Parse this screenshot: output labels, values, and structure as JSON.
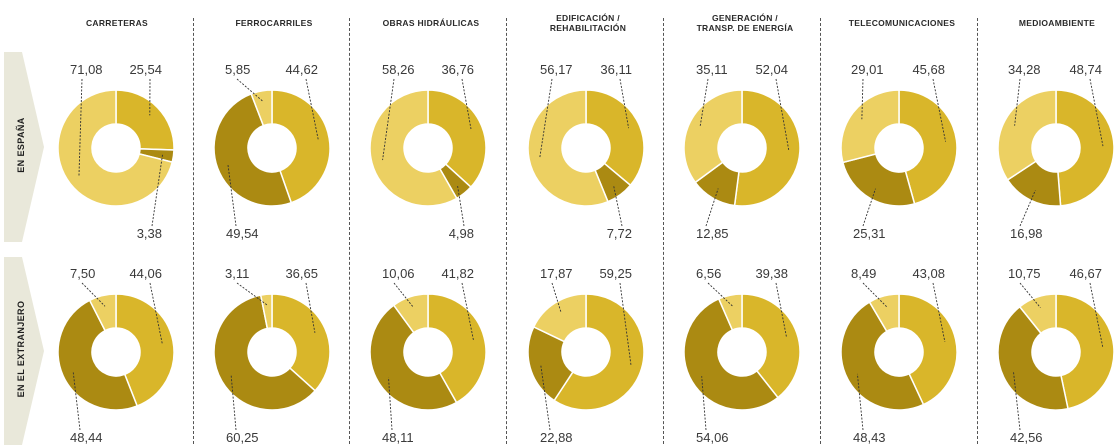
{
  "columns": [
    {
      "line1": "CARRETERAS",
      "line2": ""
    },
    {
      "line1": "FERROCARRILES",
      "line2": ""
    },
    {
      "line1": "OBRAS HIDRÁULICAS",
      "line2": ""
    },
    {
      "line1": "EDIFICACIÓN /",
      "line2": "REHABILITACIÓN"
    },
    {
      "line1": "GENERACIÓN /",
      "line2": "TRANSP. DE ENERGÍA"
    },
    {
      "line1": "TELECOMUNICACIONES",
      "line2": ""
    },
    {
      "line1": "MEDIOAMBIENTE",
      "line2": ""
    }
  ],
  "rows": [
    {
      "label": "EN ESPAÑA"
    },
    {
      "label": "EN EL EXTRANJERO"
    }
  ],
  "colors": {
    "light": "#ecd062",
    "mid": "#d9b62a",
    "dark": "#ab8a12",
    "tab": "#e9e8da",
    "leader": "#333333"
  },
  "chart_data": {
    "type": "pie",
    "variant": "donut",
    "rows": [
      {
        "row": "EN ESPAÑA",
        "charts": [
          {
            "column": "CARRETERAS",
            "slices": [
              {
                "value": 25.54,
                "label": "25,54",
                "shade": "mid",
                "pos": "top"
              },
              {
                "value": 3.38,
                "label": "3,38",
                "shade": "dark",
                "pos": "bottom"
              },
              {
                "value": 71.08,
                "label": "71,08",
                "shade": "light",
                "pos": "top"
              }
            ]
          },
          {
            "column": "FERROCARRILES",
            "slices": [
              {
                "value": 44.62,
                "label": "44,62",
                "shade": "mid",
                "pos": "top"
              },
              {
                "value": 49.54,
                "label": "49,54",
                "shade": "dark",
                "pos": "bottom"
              },
              {
                "value": 5.85,
                "label": "5,85",
                "shade": "light",
                "pos": "top"
              }
            ]
          },
          {
            "column": "OBRAS HIDRÁULICAS",
            "slices": [
              {
                "value": 36.76,
                "label": "36,76",
                "shade": "mid",
                "pos": "top"
              },
              {
                "value": 4.98,
                "label": "4,98",
                "shade": "dark",
                "pos": "bottom"
              },
              {
                "value": 58.26,
                "label": "58,26",
                "shade": "light",
                "pos": "top"
              }
            ]
          },
          {
            "column": "EDIFICACIÓN / REHABILITACIÓN",
            "slices": [
              {
                "value": 36.11,
                "label": "36,11",
                "shade": "mid",
                "pos": "top"
              },
              {
                "value": 7.72,
                "label": "7,72",
                "shade": "dark",
                "pos": "bottom"
              },
              {
                "value": 56.17,
                "label": "56,17",
                "shade": "light",
                "pos": "top"
              }
            ]
          },
          {
            "column": "GENERACIÓN / TRANSP. DE ENERGÍA",
            "slices": [
              {
                "value": 52.04,
                "label": "52,04",
                "shade": "mid",
                "pos": "top"
              },
              {
                "value": 12.85,
                "label": "12,85",
                "shade": "dark",
                "pos": "bottom"
              },
              {
                "value": 35.11,
                "label": "35,11",
                "shade": "light",
                "pos": "top"
              }
            ]
          },
          {
            "column": "TELECOMUNICACIONES",
            "slices": [
              {
                "value": 45.68,
                "label": "45,68",
                "shade": "mid",
                "pos": "top"
              },
              {
                "value": 25.31,
                "label": "25,31",
                "shade": "dark",
                "pos": "bottom"
              },
              {
                "value": 29.01,
                "label": "29,01",
                "shade": "light",
                "pos": "top"
              }
            ]
          },
          {
            "column": "MEDIOAMBIENTE",
            "slices": [
              {
                "value": 48.74,
                "label": "48,74",
                "shade": "mid",
                "pos": "top"
              },
              {
                "value": 16.98,
                "label": "16,98",
                "shade": "dark",
                "pos": "bottom"
              },
              {
                "value": 34.28,
                "label": "34,28",
                "shade": "light",
                "pos": "top"
              }
            ]
          }
        ]
      },
      {
        "row": "EN EL EXTRANJERO",
        "charts": [
          {
            "column": "CARRETERAS",
            "slices": [
              {
                "value": 44.06,
                "label": "44,06",
                "shade": "mid",
                "pos": "top"
              },
              {
                "value": 48.44,
                "label": "48,44",
                "shade": "dark",
                "pos": "bottom"
              },
              {
                "value": 7.5,
                "label": "7,50",
                "shade": "light",
                "pos": "top"
              }
            ]
          },
          {
            "column": "FERROCARRILES",
            "slices": [
              {
                "value": 36.65,
                "label": "36,65",
                "shade": "mid",
                "pos": "top"
              },
              {
                "value": 60.25,
                "label": "60,25",
                "shade": "dark",
                "pos": "bottom"
              },
              {
                "value": 3.11,
                "label": "3,11",
                "shade": "light",
                "pos": "top"
              }
            ]
          },
          {
            "column": "OBRAS HIDRÁULICAS",
            "slices": [
              {
                "value": 41.82,
                "label": "41,82",
                "shade": "mid",
                "pos": "top"
              },
              {
                "value": 48.11,
                "label": "48,11",
                "shade": "dark",
                "pos": "bottom"
              },
              {
                "value": 10.06,
                "label": "10,06",
                "shade": "light",
                "pos": "top"
              }
            ]
          },
          {
            "column": "EDIFICACIÓN / REHABILITACIÓN",
            "slices": [
              {
                "value": 59.25,
                "label": "59,25",
                "shade": "mid",
                "pos": "top"
              },
              {
                "value": 22.88,
                "label": "22,88",
                "shade": "dark",
                "pos": "bottom"
              },
              {
                "value": 17.87,
                "label": "17,87",
                "shade": "light",
                "pos": "top"
              }
            ]
          },
          {
            "column": "GENERACIÓN / TRANSP. DE ENERGÍA",
            "slices": [
              {
                "value": 39.38,
                "label": "39,38",
                "shade": "mid",
                "pos": "top"
              },
              {
                "value": 54.06,
                "label": "54,06",
                "shade": "dark",
                "pos": "bottom"
              },
              {
                "value": 6.56,
                "label": "6,56",
                "shade": "light",
                "pos": "top"
              }
            ]
          },
          {
            "column": "TELECOMUNICACIONES",
            "slices": [
              {
                "value": 43.08,
                "label": "43,08",
                "shade": "mid",
                "pos": "top"
              },
              {
                "value": 48.43,
                "label": "48,43",
                "shade": "dark",
                "pos": "bottom"
              },
              {
                "value": 8.49,
                "label": "8,49",
                "shade": "light",
                "pos": "top"
              }
            ]
          },
          {
            "column": "MEDIOAMBIENTE",
            "slices": [
              {
                "value": 46.67,
                "label": "46,67",
                "shade": "mid",
                "pos": "top"
              },
              {
                "value": 42.56,
                "label": "42,56",
                "shade": "dark",
                "pos": "bottom"
              },
              {
                "value": 10.75,
                "label": "10,75",
                "shade": "light",
                "pos": "top"
              }
            ]
          }
        ]
      }
    ]
  }
}
